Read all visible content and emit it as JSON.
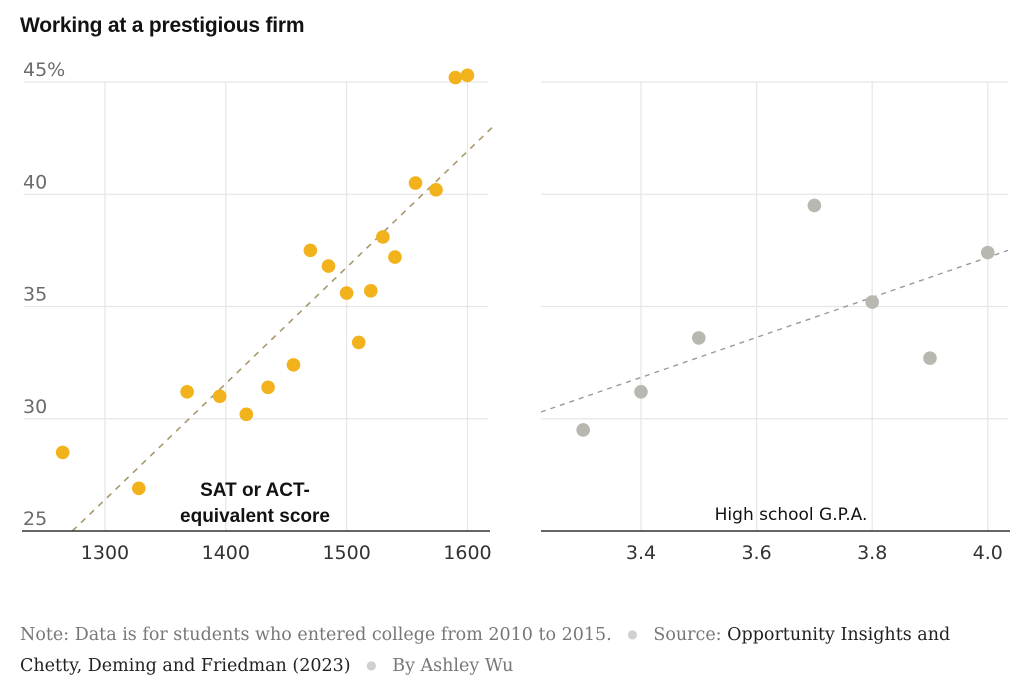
{
  "title": "Working at a prestigious firm",
  "colors": {
    "sat_dot": "#F2B21C",
    "sat_trend": "#a8996a",
    "gpa_dot": "#b8b8b1",
    "gpa_trend": "#9a9a9a",
    "grid": "#e6e6e6",
    "axis": "#333333"
  },
  "chart_data": [
    {
      "type": "scatter",
      "title": "Working at a prestigious firm",
      "xlabel": "SAT or ACT-equivalent score",
      "ylabel": "",
      "xlim": [
        1233,
        1617
      ],
      "ylim": [
        25,
        45
      ],
      "xticks": [
        1300,
        1400,
        1500,
        1600
      ],
      "xtick_labels": [
        "1300",
        "1400",
        "1500",
        "1600"
      ],
      "yticks": [
        25,
        30,
        35,
        40,
        45
      ],
      "ytick_labels": [
        "25",
        "30",
        "35",
        "40",
        "45%"
      ],
      "grid": true,
      "x": [
        1265,
        1328,
        1368,
        1395,
        1417,
        1435,
        1456,
        1470,
        1485,
        1500,
        1510,
        1520,
        1530,
        1540,
        1557,
        1574,
        1590,
        1600
      ],
      "y": [
        28.5,
        26.9,
        31.2,
        31.0,
        30.2,
        31.4,
        32.4,
        37.5,
        36.8,
        35.6,
        33.4,
        35.7,
        38.1,
        37.2,
        40.5,
        40.2,
        45.2,
        45.3
      ],
      "trendline": {
        "x": [
          1273,
          1621
        ],
        "y": [
          25.0,
          43.0
        ],
        "style": "dashed"
      }
    },
    {
      "type": "scatter",
      "xlabel": "High school G.P.A.",
      "ylabel": "",
      "xlim": [
        3.227,
        4.035
      ],
      "ylim": [
        25,
        45
      ],
      "xticks": [
        3.4,
        3.6,
        3.8,
        4.0
      ],
      "xtick_labels": [
        "3.4",
        "3.6",
        "3.8",
        "4.0"
      ],
      "yticks": [
        25,
        30,
        35,
        40,
        45
      ],
      "grid": true,
      "x": [
        3.3,
        3.4,
        3.5,
        3.7,
        3.8,
        3.9,
        4.0
      ],
      "y": [
        29.5,
        31.2,
        33.6,
        39.5,
        35.2,
        32.7,
        37.4
      ],
      "trendline": {
        "x": [
          3.227,
          4.035
        ],
        "y": [
          30.3,
          37.5
        ],
        "style": "dashed"
      }
    }
  ],
  "footer": {
    "note_label": "Note:",
    "note_text": "Data is for students who entered college from 2010 to 2015.",
    "source_label": "Source:",
    "source_text": "Opportunity Insights and Chetty, Deming and Friedman (2023)",
    "byline": "By Ashley Wu"
  }
}
